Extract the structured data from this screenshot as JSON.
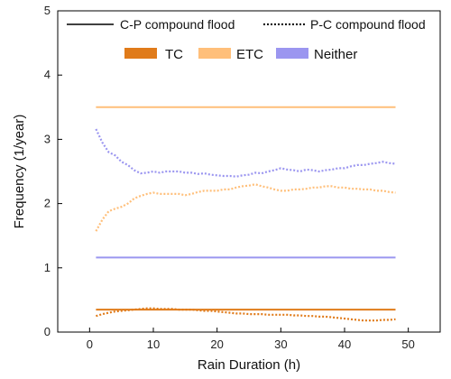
{
  "chart_data": {
    "type": "line",
    "title": "",
    "xlabel": "Rain Duration (h)",
    "ylabel": "Frequency (1/year)",
    "xlim": [
      -5,
      55
    ],
    "ylim": [
      0,
      5
    ],
    "xticks": [
      0,
      10,
      20,
      30,
      40,
      50
    ],
    "yticks": [
      0,
      1,
      2,
      3,
      4,
      5
    ],
    "grid": false,
    "legend": {
      "styles": [
        {
          "label": "C-P compound flood",
          "dash": "solid"
        },
        {
          "label": "P-C compound flood",
          "dash": "dotted"
        }
      ],
      "categories": [
        {
          "label": "TC",
          "color": "#e07b1a"
        },
        {
          "label": "ETC",
          "color": "#ffbf7a"
        },
        {
          "label": "Neither",
          "color": "#9b96f0"
        }
      ],
      "placement": "top-center"
    },
    "series": [
      {
        "name": "TC",
        "style": "C-P compound flood",
        "color": "#e07b1a",
        "x": [
          1,
          48
        ],
        "y": [
          0.35,
          0.35
        ]
      },
      {
        "name": "ETC",
        "style": "C-P compound flood",
        "color": "#ffbf7a",
        "x": [
          1,
          48
        ],
        "y": [
          3.5,
          3.5
        ]
      },
      {
        "name": "Neither",
        "style": "C-P compound flood",
        "color": "#9b96f0",
        "x": [
          1,
          48
        ],
        "y": [
          1.16,
          1.16
        ]
      },
      {
        "name": "Neither",
        "style": "P-C compound flood",
        "color": "#9b96f0",
        "x": [
          1,
          2,
          3,
          4,
          5,
          6,
          7,
          8,
          9,
          10,
          11,
          12,
          13,
          14,
          15,
          16,
          17,
          18,
          19,
          20,
          21,
          22,
          23,
          24,
          25,
          26,
          27,
          28,
          29,
          30,
          31,
          32,
          33,
          34,
          35,
          36,
          37,
          38,
          39,
          40,
          41,
          42,
          43,
          44,
          45,
          46,
          47,
          48
        ],
        "y": [
          3.16,
          2.95,
          2.8,
          2.75,
          2.65,
          2.6,
          2.52,
          2.47,
          2.48,
          2.5,
          2.48,
          2.5,
          2.5,
          2.5,
          2.48,
          2.48,
          2.46,
          2.47,
          2.45,
          2.44,
          2.43,
          2.43,
          2.42,
          2.44,
          2.45,
          2.48,
          2.47,
          2.5,
          2.52,
          2.55,
          2.53,
          2.52,
          2.5,
          2.53,
          2.52,
          2.5,
          2.52,
          2.53,
          2.55,
          2.55,
          2.58,
          2.6,
          2.6,
          2.62,
          2.63,
          2.65,
          2.63,
          2.62
        ]
      },
      {
        "name": "ETC",
        "style": "P-C compound flood",
        "color": "#ffbf7a",
        "x": [
          1,
          2,
          3,
          4,
          5,
          6,
          7,
          8,
          9,
          10,
          11,
          12,
          13,
          14,
          15,
          16,
          17,
          18,
          19,
          20,
          21,
          22,
          23,
          24,
          25,
          26,
          27,
          28,
          29,
          30,
          31,
          32,
          33,
          34,
          35,
          36,
          37,
          38,
          39,
          40,
          41,
          42,
          43,
          44,
          45,
          46,
          47,
          48
        ],
        "y": [
          1.57,
          1.75,
          1.88,
          1.92,
          1.95,
          2.0,
          2.08,
          2.12,
          2.15,
          2.17,
          2.15,
          2.15,
          2.15,
          2.15,
          2.13,
          2.15,
          2.18,
          2.2,
          2.2,
          2.2,
          2.22,
          2.22,
          2.25,
          2.27,
          2.28,
          2.3,
          2.27,
          2.25,
          2.22,
          2.2,
          2.2,
          2.22,
          2.22,
          2.23,
          2.25,
          2.25,
          2.27,
          2.27,
          2.25,
          2.25,
          2.23,
          2.23,
          2.22,
          2.22,
          2.2,
          2.2,
          2.18,
          2.17
        ]
      },
      {
        "name": "TC",
        "style": "P-C compound flood",
        "color": "#e07b1a",
        "x": [
          1,
          2,
          3,
          4,
          5,
          6,
          7,
          8,
          9,
          10,
          11,
          12,
          13,
          14,
          15,
          16,
          17,
          18,
          19,
          20,
          21,
          22,
          23,
          24,
          25,
          26,
          27,
          28,
          29,
          30,
          31,
          32,
          33,
          34,
          35,
          36,
          37,
          38,
          39,
          40,
          41,
          42,
          43,
          44,
          45,
          46,
          47,
          48
        ],
        "y": [
          0.25,
          0.28,
          0.3,
          0.32,
          0.33,
          0.34,
          0.35,
          0.36,
          0.37,
          0.37,
          0.36,
          0.36,
          0.36,
          0.35,
          0.35,
          0.35,
          0.34,
          0.33,
          0.33,
          0.32,
          0.31,
          0.3,
          0.29,
          0.29,
          0.28,
          0.28,
          0.28,
          0.27,
          0.27,
          0.27,
          0.27,
          0.26,
          0.26,
          0.25,
          0.25,
          0.24,
          0.24,
          0.23,
          0.22,
          0.21,
          0.2,
          0.19,
          0.18,
          0.18,
          0.18,
          0.19,
          0.19,
          0.2
        ]
      }
    ]
  }
}
